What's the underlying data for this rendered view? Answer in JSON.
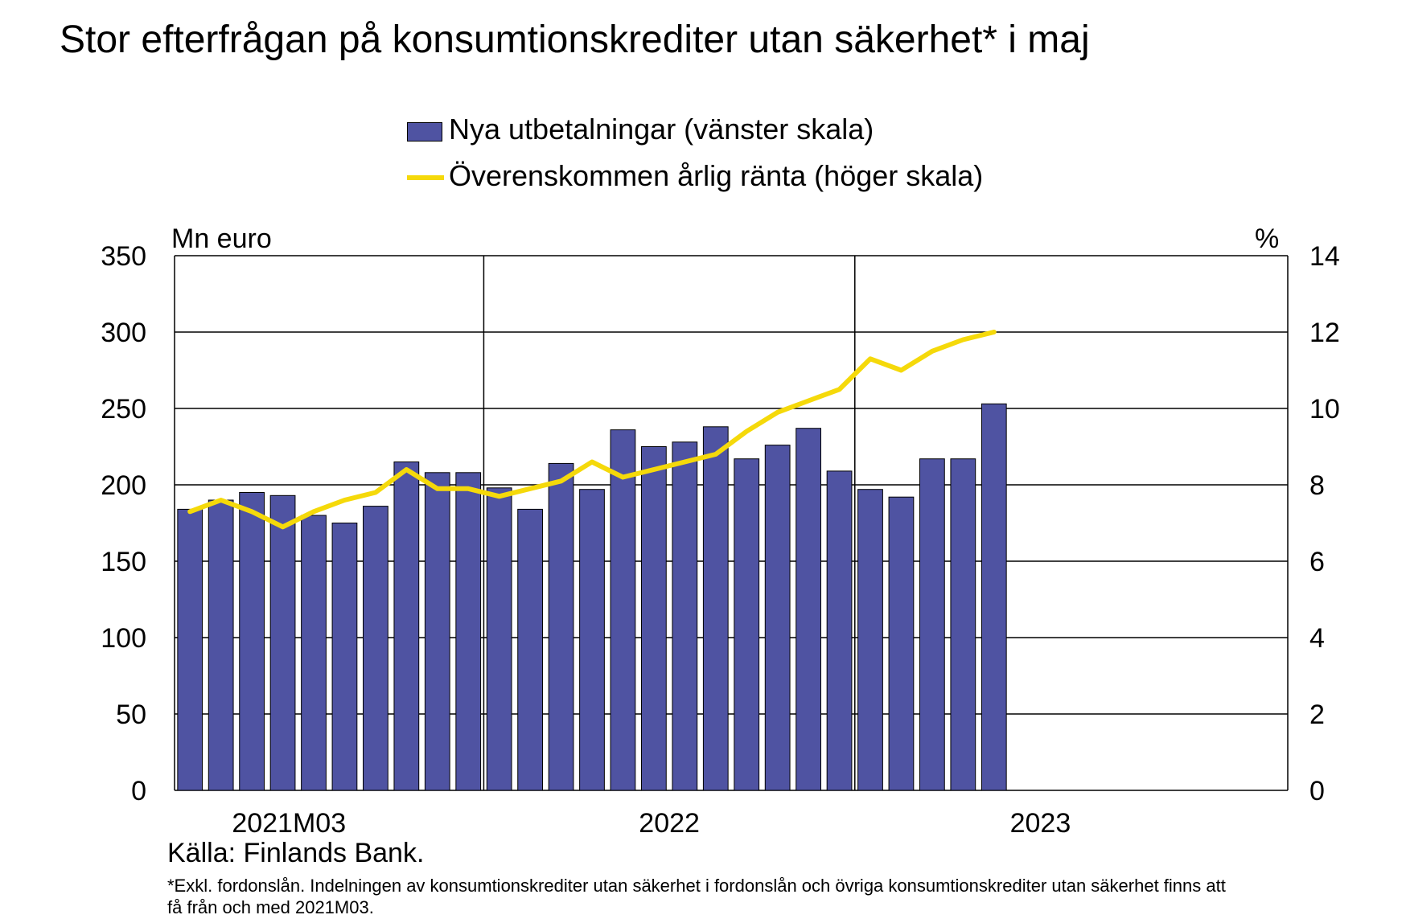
{
  "title": "Stor efterfrågan på konsumtionskrediter utan säkerhet* i maj",
  "left_axis_unit": "Mn euro",
  "right_axis_unit": "%",
  "source": "Källa: Finlands Bank.",
  "footnote": "*Exkl. fordonslån. Indelningen av konsumtionskrediter utan säkerhet i fordonslån och övriga konsumtionskrediter utan säkerhet finns att få från och med 2021M03.",
  "colors": {
    "bars": "#4f53a2",
    "line": "#f5d90a",
    "grid": "#000000"
  },
  "chart_data": {
    "type": "bar",
    "legend_placement": "top-center",
    "grid": true,
    "x": [
      "2021M03",
      "2021M04",
      "2021M05",
      "2021M06",
      "2021M07",
      "2021M08",
      "2021M09",
      "2021M10",
      "2021M11",
      "2021M12",
      "2022M01",
      "2022M02",
      "2022M03",
      "2022M04",
      "2022M05",
      "2022M06",
      "2022M07",
      "2022M08",
      "2022M09",
      "2022M10",
      "2022M11",
      "2022M12",
      "2023M01",
      "2023M02",
      "2023M03",
      "2023M04",
      "2023M05"
    ],
    "x_tick_labels": [
      "2021M03",
      "2022",
      "2023"
    ],
    "x_range": [
      "2021M03",
      "2024M02"
    ],
    "ylim_left": [
      0,
      350
    ],
    "yticks_left": [
      0,
      50,
      100,
      150,
      200,
      250,
      300,
      350
    ],
    "ylim_right": [
      0,
      14
    ],
    "yticks_right": [
      0,
      2,
      4,
      6,
      8,
      10,
      12,
      14
    ],
    "series": [
      {
        "name": "Nya utbetalningar (vänster skala)",
        "kind": "bar",
        "axis": "left",
        "values": [
          184,
          190,
          195,
          193,
          180,
          175,
          186,
          215,
          208,
          208,
          198,
          184,
          214,
          197,
          236,
          225,
          228,
          238,
          217,
          226,
          237,
          209,
          197,
          192,
          217,
          217,
          253
        ]
      },
      {
        "name": "Överenskommen årlig ränta (höger skala)",
        "kind": "line",
        "axis": "right",
        "values": [
          7.3,
          7.6,
          7.3,
          6.9,
          7.3,
          7.6,
          7.8,
          8.4,
          7.9,
          7.9,
          7.7,
          7.9,
          8.1,
          8.6,
          8.2,
          8.4,
          8.6,
          8.8,
          9.4,
          9.9,
          10.2,
          10.5,
          11.3,
          11.0,
          11.5,
          11.8,
          12.0
        ]
      }
    ]
  }
}
